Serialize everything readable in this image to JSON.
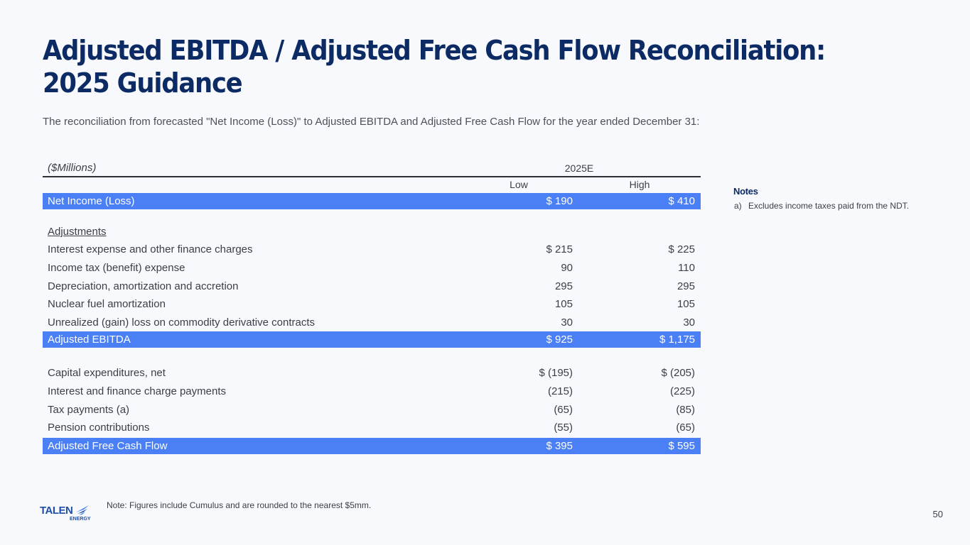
{
  "title": "Adjusted EBITDA / Adjusted Free Cash Flow Reconciliation: 2025 Guidance",
  "subtitle": "The reconciliation from forecasted \"Net Income (Loss)\" to Adjusted EBITDA and Adjusted Free Cash Flow for the year ended December 31:",
  "table": {
    "units_label": "($Millions)",
    "year_label": "2025E",
    "col_low": "Low",
    "col_high": "High",
    "net_income": {
      "label": "Net Income (Loss)",
      "low": "$ 190",
      "high": "$ 410"
    },
    "adjustments_header": "Adjustments",
    "adjustments": [
      {
        "label": "Interest expense and other finance charges",
        "low": "$ 215",
        "high": "$ 225"
      },
      {
        "label": "Income tax (benefit) expense",
        "low": "90",
        "high": "110"
      },
      {
        "label": "Depreciation, amortization and accretion",
        "low": "295",
        "high": "295"
      },
      {
        "label": "Nuclear fuel amortization",
        "low": "105",
        "high": "105"
      },
      {
        "label": "Unrealized (gain) loss on commodity derivative contracts",
        "low": "30",
        "high": "30"
      }
    ],
    "adjusted_ebitda": {
      "label": "Adjusted EBITDA",
      "low": "$ 925",
      "high": "$ 1,175"
    },
    "cash_items": [
      {
        "label": "Capital expenditures, net",
        "low": "$ (195)",
        "high": "$ (205)"
      },
      {
        "label": "Interest and finance charge payments",
        "low": "(215)",
        "high": "(225)"
      },
      {
        "label": "Tax payments (a)",
        "low": "(65)",
        "high": "(85)"
      },
      {
        "label": "Pension contributions",
        "low": "(55)",
        "high": "(65)"
      }
    ],
    "adjusted_fcf": {
      "label": "Adjusted Free Cash Flow",
      "low": "$ 395",
      "high": "$ 595"
    }
  },
  "notes": {
    "title": "Notes",
    "items": [
      {
        "marker": "a)",
        "text": "Excludes income taxes paid from the NDT."
      }
    ]
  },
  "footnote": "Note: Figures include Cumulus and are rounded to the nearest $5mm.",
  "page_number": "50",
  "logo": {
    "word": "TALEN",
    "sub": "ENERGY"
  },
  "colors": {
    "title": "#0c2a63",
    "highlight": "#4a7ff5",
    "logo": "#1f4ea8"
  }
}
